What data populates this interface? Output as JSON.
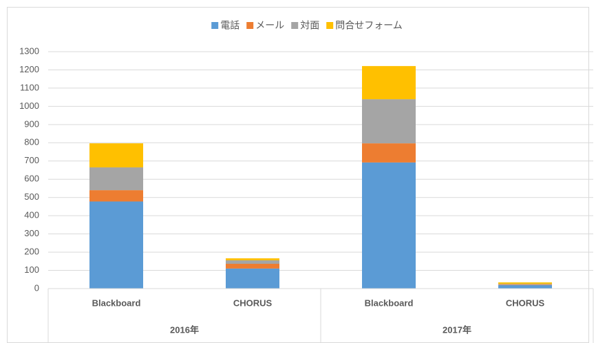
{
  "chart_data": {
    "type": "stacked_bar",
    "groups": [
      {
        "name": "2016年",
        "categories": [
          "Blackboard",
          "CHORUS"
        ]
      },
      {
        "name": "2017年",
        "categories": [
          "Blackboard",
          "CHORUS"
        ]
      }
    ],
    "series": [
      {
        "name": "電話",
        "color": "#5b9bd5",
        "values": [
          478,
          110,
          692,
          19
        ]
      },
      {
        "name": "メール",
        "color": "#ed7d31",
        "values": [
          62,
          26,
          105,
          3
        ]
      },
      {
        "name": "対面",
        "color": "#a5a5a5",
        "values": [
          125,
          19,
          242,
          4
        ]
      },
      {
        "name": "問合せフォーム",
        "color": "#ffc000",
        "values": [
          132,
          11,
          182,
          8
        ]
      }
    ],
    "ylim": [
      0,
      1300
    ],
    "yticks": [
      0,
      100,
      200,
      300,
      400,
      500,
      600,
      700,
      800,
      900,
      1000,
      1100,
      1200,
      1300
    ],
    "grid": true,
    "legend": "top"
  }
}
